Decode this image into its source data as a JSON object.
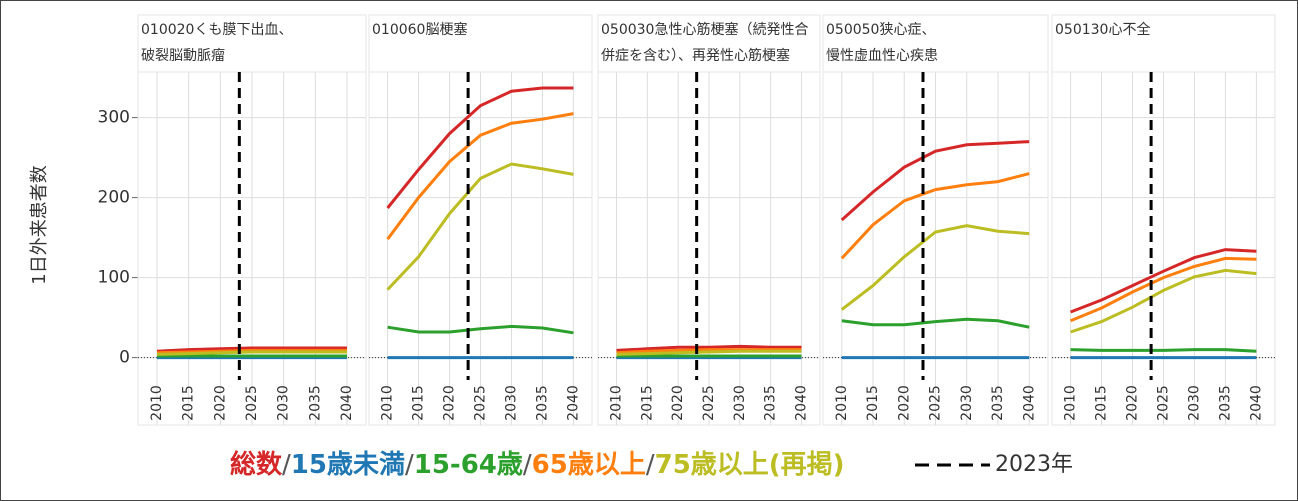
{
  "chart_data": {
    "type": "line",
    "y_label": "1日外来患者数",
    "x": [
      2010,
      2015,
      2020,
      2025,
      2030,
      2035,
      2040
    ],
    "xlim": [
      2007,
      2043
    ],
    "xticks": [
      2010,
      2015,
      2020,
      2025,
      2030,
      2035,
      2040
    ],
    "ylim": [
      -28,
      357
    ],
    "yticks": [
      0,
      100,
      200,
      300
    ],
    "zero_line": true,
    "grid": true,
    "series": [
      {
        "name": "総数",
        "color": "#d62728"
      },
      {
        "name": "15歳未満",
        "color": "#1f77b4"
      },
      {
        "name": "15-64歳",
        "color": "#2ca02c"
      },
      {
        "name": "65歳以上",
        "color": "#ff7f0e"
      },
      {
        "name": "75歳以上(再掲)",
        "color": "#bcbd22"
      }
    ],
    "legend_separator": "/",
    "reference_line": {
      "x": 2023,
      "label": "2023年"
    },
    "panels": [
      {
        "title": [
          "010020くも膜下出血、",
          "破裂脳動脈瘤"
        ],
        "values": [
          [
            8,
            10,
            11,
            12,
            12,
            12,
            12
          ],
          [
            0,
            0,
            0,
            0,
            0,
            0,
            0
          ],
          [
            2,
            2,
            2,
            2,
            2,
            2,
            2
          ],
          [
            6,
            7,
            8,
            9,
            9,
            9,
            9
          ],
          [
            4,
            5,
            6,
            7,
            7,
            7,
            7
          ]
        ]
      },
      {
        "title": [
          "010060脳梗塞"
        ],
        "values": [
          [
            187,
            235,
            280,
            315,
            333,
            337,
            337
          ],
          [
            0,
            0,
            0,
            0,
            0,
            0,
            0
          ],
          [
            38,
            32,
            32,
            36,
            39,
            37,
            31
          ],
          [
            148,
            200,
            245,
            278,
            293,
            298,
            305
          ],
          [
            85,
            126,
            180,
            224,
            242,
            236,
            229
          ]
        ]
      },
      {
        "title": [
          "050030急性心筋梗塞（続発性合",
          "併症を含む）、再発性心筋梗塞"
        ],
        "values": [
          [
            9,
            11,
            13,
            13,
            14,
            13,
            13
          ],
          [
            0,
            0,
            0,
            0,
            0,
            0,
            0
          ],
          [
            2,
            2,
            2,
            2,
            2,
            2,
            2
          ],
          [
            6,
            8,
            9,
            10,
            10,
            10,
            10
          ],
          [
            4,
            5,
            6,
            7,
            8,
            8,
            8
          ]
        ]
      },
      {
        "title": [
          "050050狭心症、",
          "慢性虚血性心疾患"
        ],
        "values": [
          [
            172,
            207,
            238,
            258,
            266,
            268,
            270
          ],
          [
            0,
            0,
            0,
            0,
            0,
            0,
            0
          ],
          [
            46,
            41,
            41,
            45,
            48,
            46,
            38
          ],
          [
            124,
            166,
            196,
            210,
            216,
            220,
            230
          ],
          [
            60,
            90,
            126,
            157,
            165,
            158,
            155
          ]
        ]
      },
      {
        "title": [
          "050130心不全"
        ],
        "values": [
          [
            57,
            72,
            90,
            108,
            125,
            135,
            133
          ],
          [
            0,
            0,
            0,
            0,
            0,
            0,
            0
          ],
          [
            10,
            9,
            9,
            9,
            10,
            10,
            8
          ],
          [
            46,
            62,
            82,
            100,
            114,
            124,
            123
          ],
          [
            32,
            45,
            63,
            84,
            101,
            109,
            105
          ]
        ]
      }
    ]
  }
}
